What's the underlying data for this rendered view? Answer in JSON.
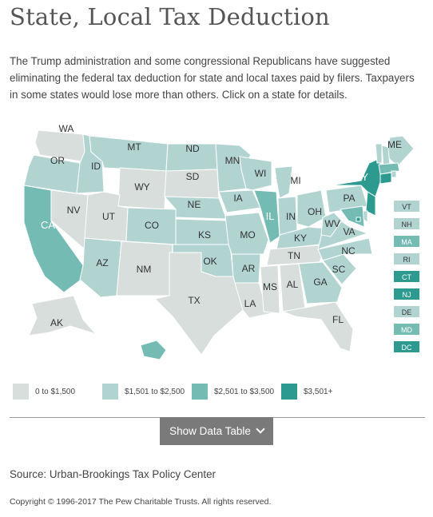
{
  "page": {
    "title": "State, Local Tax Deduction",
    "intro": "The Trump administration and some congressional Republicans have suggested eliminating the federal tax deduction for state and local taxes paid by filers. Taxpayers in some states would lose more than others. Click on a state for details.",
    "source": "Source: Urban-Brookings Tax Policy Center",
    "copyright": "Copyright © 1996-2017 The Pew Charitable Trusts. All rights reserved.",
    "button_label": "Show Data Table"
  },
  "colors": {
    "c1": "#d8dedc",
    "c2": "#b1d4d1",
    "c3": "#74bbb4",
    "c4": "#2c9a8f",
    "text_dark": "#333333",
    "text_light": "#ffffff",
    "border": "#ffffff"
  },
  "legend": [
    {
      "label": "0 to $1,500",
      "cat": "c1"
    },
    {
      "label": "$1,501 to $2,500",
      "cat": "c2"
    },
    {
      "label": "$2,501 to $3,500",
      "cat": "c3"
    },
    {
      "label": "$3,501+",
      "cat": "c4"
    }
  ],
  "states": [
    {
      "abbr": "WA",
      "cat": "c1"
    },
    {
      "abbr": "OR",
      "cat": "c2"
    },
    {
      "abbr": "CA",
      "cat": "c3"
    },
    {
      "abbr": "ID",
      "cat": "c2"
    },
    {
      "abbr": "NV",
      "cat": "c1"
    },
    {
      "abbr": "MT",
      "cat": "c2"
    },
    {
      "abbr": "WY",
      "cat": "c1"
    },
    {
      "abbr": "UT",
      "cat": "c1"
    },
    {
      "abbr": "AZ",
      "cat": "c2"
    },
    {
      "abbr": "CO",
      "cat": "c2"
    },
    {
      "abbr": "NM",
      "cat": "c1"
    },
    {
      "abbr": "ND",
      "cat": "c2"
    },
    {
      "abbr": "SD",
      "cat": "c1"
    },
    {
      "abbr": "NE",
      "cat": "c2"
    },
    {
      "abbr": "KS",
      "cat": "c2"
    },
    {
      "abbr": "OK",
      "cat": "c2"
    },
    {
      "abbr": "TX",
      "cat": "c1"
    },
    {
      "abbr": "MN",
      "cat": "c2"
    },
    {
      "abbr": "IA",
      "cat": "c2"
    },
    {
      "abbr": "MO",
      "cat": "c2"
    },
    {
      "abbr": "AR",
      "cat": "c2"
    },
    {
      "abbr": "LA",
      "cat": "c1"
    },
    {
      "abbr": "WI",
      "cat": "c2"
    },
    {
      "abbr": "IL",
      "cat": "c3"
    },
    {
      "abbr": "MI",
      "cat": "c2"
    },
    {
      "abbr": "IN",
      "cat": "c2"
    },
    {
      "abbr": "OH",
      "cat": "c2"
    },
    {
      "abbr": "KY",
      "cat": "c2"
    },
    {
      "abbr": "TN",
      "cat": "c1"
    },
    {
      "abbr": "MS",
      "cat": "c1"
    },
    {
      "abbr": "AL",
      "cat": "c1"
    },
    {
      "abbr": "GA",
      "cat": "c2"
    },
    {
      "abbr": "FL",
      "cat": "c1"
    },
    {
      "abbr": "SC",
      "cat": "c2"
    },
    {
      "abbr": "NC",
      "cat": "c2"
    },
    {
      "abbr": "VA",
      "cat": "c2"
    },
    {
      "abbr": "WV",
      "cat": "c2"
    },
    {
      "abbr": "PA",
      "cat": "c2"
    },
    {
      "abbr": "NY",
      "cat": "c4"
    },
    {
      "abbr": "ME",
      "cat": "c2"
    },
    {
      "abbr": "AK",
      "cat": "c1"
    },
    {
      "abbr": "HI",
      "cat": "c3"
    },
    {
      "abbr": "VT",
      "cat": "c2"
    },
    {
      "abbr": "NH",
      "cat": "c2"
    },
    {
      "abbr": "MA",
      "cat": "c3"
    },
    {
      "abbr": "RI",
      "cat": "c2"
    },
    {
      "abbr": "CT",
      "cat": "c4"
    },
    {
      "abbr": "NJ",
      "cat": "c4"
    },
    {
      "abbr": "DE",
      "cat": "c2"
    },
    {
      "abbr": "MD",
      "cat": "c3"
    },
    {
      "abbr": "DC",
      "cat": "c4"
    }
  ],
  "side_states": [
    "VT",
    "NH",
    "MA",
    "RI",
    "CT",
    "NJ",
    "DE",
    "MD",
    "DC"
  ]
}
